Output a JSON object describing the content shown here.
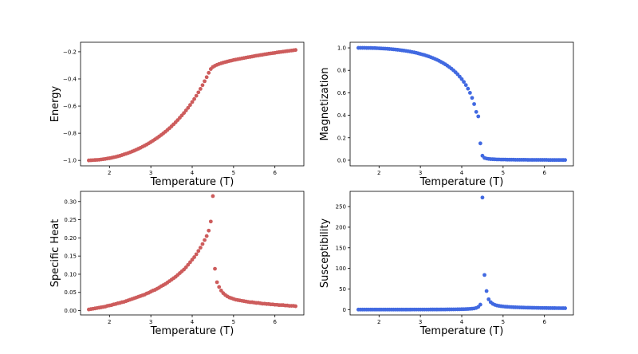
{
  "colors": {
    "red": "#cd5c5c",
    "blue": "#4169e1"
  },
  "chart_data": [
    {
      "id": "energy",
      "type": "scatter",
      "xlabel": "Temperature (T)",
      "ylabel": "Energy",
      "color": "#cd5c5c",
      "xlim": [
        1.3,
        6.7
      ],
      "ylim": [
        -1.04,
        -0.13
      ],
      "xticks": [
        2,
        3,
        4,
        5,
        6
      ],
      "xtick_labels": [
        "2",
        "3",
        "4",
        "5",
        "6"
      ],
      "yticks": [
        -1.0,
        -0.8,
        -0.6,
        -0.4,
        -0.2
      ],
      "ytick_labels": [
        "−1.0",
        "−0.8",
        "−0.6",
        "−0.4",
        "−0.2"
      ],
      "x": [
        1.5,
        1.55,
        1.6,
        1.65,
        1.7,
        1.75,
        1.8,
        1.85,
        1.9,
        1.95,
        2.0,
        2.05,
        2.1,
        2.15,
        2.2,
        2.25,
        2.3,
        2.35,
        2.4,
        2.45,
        2.5,
        2.55,
        2.6,
        2.65,
        2.7,
        2.75,
        2.8,
        2.85,
        2.9,
        2.95,
        3.0,
        3.05,
        3.1,
        3.15,
        3.2,
        3.25,
        3.3,
        3.35,
        3.4,
        3.45,
        3.5,
        3.55,
        3.6,
        3.65,
        3.7,
        3.75,
        3.8,
        3.85,
        3.9,
        3.95,
        4.0,
        4.05,
        4.1,
        4.15,
        4.2,
        4.25,
        4.3,
        4.35,
        4.4,
        4.45,
        4.5,
        4.55,
        4.6,
        4.65,
        4.7,
        4.75,
        4.8,
        4.85,
        4.9,
        4.95,
        5.0,
        5.05,
        5.1,
        5.15,
        5.2,
        5.25,
        5.3,
        5.35,
        5.4,
        5.45,
        5.5,
        5.55,
        5.6,
        5.65,
        5.7,
        5.75,
        5.8,
        5.85,
        5.9,
        5.95,
        6.0,
        6.05,
        6.1,
        6.15,
        6.2,
        6.25,
        6.3,
        6.35,
        6.4,
        6.45,
        6.5
      ],
      "y": [
        -1.0,
        -0.999,
        -0.998,
        -0.997,
        -0.996,
        -0.995,
        -0.993,
        -0.991,
        -0.989,
        -0.986,
        -0.984,
        -0.981,
        -0.977,
        -0.974,
        -0.97,
        -0.966,
        -0.961,
        -0.956,
        -0.951,
        -0.946,
        -0.94,
        -0.934,
        -0.928,
        -0.921,
        -0.914,
        -0.907,
        -0.899,
        -0.891,
        -0.883,
        -0.874,
        -0.865,
        -0.855,
        -0.845,
        -0.835,
        -0.824,
        -0.813,
        -0.801,
        -0.789,
        -0.776,
        -0.763,
        -0.749,
        -0.734,
        -0.719,
        -0.703,
        -0.686,
        -0.669,
        -0.651,
        -0.632,
        -0.613,
        -0.592,
        -0.57,
        -0.548,
        -0.524,
        -0.499,
        -0.473,
        -0.446,
        -0.417,
        -0.387,
        -0.355,
        -0.327,
        -0.312,
        -0.303,
        -0.296,
        -0.29,
        -0.285,
        -0.28,
        -0.276,
        -0.272,
        -0.268,
        -0.265,
        -0.261,
        -0.258,
        -0.255,
        -0.252,
        -0.249,
        -0.246,
        -0.243,
        -0.24,
        -0.238,
        -0.235,
        -0.232,
        -0.229,
        -0.227,
        -0.224,
        -0.222,
        -0.219,
        -0.217,
        -0.214,
        -0.212,
        -0.21,
        -0.208,
        -0.205,
        -0.203,
        -0.201,
        -0.199,
        -0.197,
        -0.195,
        -0.193,
        -0.191,
        -0.189,
        -0.187
      ]
    },
    {
      "id": "magnetization",
      "type": "scatter",
      "xlabel": "Temperature (T)",
      "ylabel": "Magnetization",
      "color": "#4169e1",
      "xlim": [
        1.3,
        6.7
      ],
      "ylim": [
        -0.05,
        1.05
      ],
      "xticks": [
        2,
        3,
        4,
        5,
        6
      ],
      "xtick_labels": [
        "2",
        "3",
        "4",
        "5",
        "6"
      ],
      "yticks": [
        0.0,
        0.2,
        0.4,
        0.6,
        0.8,
        1.0
      ],
      "ytick_labels": [
        "0.0",
        "0.2",
        "0.4",
        "0.6",
        "0.8",
        "1.0"
      ],
      "x": [
        1.5,
        1.55,
        1.6,
        1.65,
        1.7,
        1.75,
        1.8,
        1.85,
        1.9,
        1.95,
        2.0,
        2.05,
        2.1,
        2.15,
        2.2,
        2.25,
        2.3,
        2.35,
        2.4,
        2.45,
        2.5,
        2.55,
        2.6,
        2.65,
        2.7,
        2.75,
        2.8,
        2.85,
        2.9,
        2.95,
        3.0,
        3.05,
        3.1,
        3.15,
        3.2,
        3.25,
        3.3,
        3.35,
        3.4,
        3.45,
        3.5,
        3.55,
        3.6,
        3.65,
        3.7,
        3.75,
        3.8,
        3.85,
        3.9,
        3.95,
        4.0,
        4.05,
        4.1,
        4.15,
        4.2,
        4.25,
        4.3,
        4.35,
        4.4,
        4.45,
        4.5,
        4.55,
        4.6,
        4.65,
        4.7,
        4.75,
        4.8,
        4.85,
        4.9,
        4.95,
        5.0,
        5.05,
        5.1,
        5.15,
        5.2,
        5.25,
        5.3,
        5.35,
        5.4,
        5.45,
        5.5,
        5.55,
        5.6,
        5.65,
        5.7,
        5.75,
        5.8,
        5.85,
        5.9,
        5.95,
        6.0,
        6.05,
        6.1,
        6.15,
        6.2,
        6.25,
        6.3,
        6.35,
        6.4,
        6.45,
        6.5
      ],
      "y": [
        1.0,
        1.0,
        1.0,
        1.0,
        0.999,
        0.999,
        0.999,
        0.998,
        0.998,
        0.997,
        0.996,
        0.995,
        0.994,
        0.993,
        0.992,
        0.99,
        0.989,
        0.987,
        0.985,
        0.983,
        0.981,
        0.978,
        0.976,
        0.973,
        0.97,
        0.967,
        0.963,
        0.96,
        0.956,
        0.951,
        0.946,
        0.941,
        0.936,
        0.93,
        0.924,
        0.917,
        0.91,
        0.902,
        0.894,
        0.885,
        0.875,
        0.865,
        0.854,
        0.842,
        0.829,
        0.815,
        0.8,
        0.783,
        0.765,
        0.744,
        0.722,
        0.697,
        0.669,
        0.637,
        0.6,
        0.555,
        0.5,
        0.43,
        0.39,
        0.15,
        0.04,
        0.02,
        0.015,
        0.012,
        0.01,
        0.009,
        0.008,
        0.007,
        0.007,
        0.006,
        0.006,
        0.006,
        0.005,
        0.005,
        0.005,
        0.005,
        0.004,
        0.004,
        0.004,
        0.004,
        0.004,
        0.004,
        0.003,
        0.003,
        0.003,
        0.003,
        0.003,
        0.003,
        0.003,
        0.003,
        0.003,
        0.003,
        0.002,
        0.002,
        0.002,
        0.002,
        0.002,
        0.002,
        0.002,
        0.002,
        0.002
      ]
    },
    {
      "id": "specific-heat",
      "type": "scatter",
      "xlabel": "Temperature (T)",
      "ylabel": "Specific Heat",
      "color": "#cd5c5c",
      "xlim": [
        1.3,
        6.7
      ],
      "ylim": [
        -0.012,
        0.328
      ],
      "xticks": [
        2,
        3,
        4,
        5,
        6
      ],
      "xtick_labels": [
        "2",
        "3",
        "4",
        "5",
        "6"
      ],
      "yticks": [
        0.0,
        0.05,
        0.1,
        0.15,
        0.2,
        0.25,
        0.3
      ],
      "ytick_labels": [
        "0.00",
        "0.05",
        "0.10",
        "0.15",
        "0.20",
        "0.25",
        "0.30"
      ],
      "x": [
        1.5,
        1.55,
        1.6,
        1.65,
        1.7,
        1.75,
        1.8,
        1.85,
        1.9,
        1.95,
        2.0,
        2.05,
        2.1,
        2.15,
        2.2,
        2.25,
        2.3,
        2.35,
        2.4,
        2.45,
        2.5,
        2.55,
        2.6,
        2.65,
        2.7,
        2.75,
        2.8,
        2.85,
        2.9,
        2.95,
        3.0,
        3.05,
        3.1,
        3.15,
        3.2,
        3.25,
        3.3,
        3.35,
        3.4,
        3.45,
        3.5,
        3.55,
        3.6,
        3.65,
        3.7,
        3.75,
        3.8,
        3.85,
        3.9,
        3.95,
        4.0,
        4.05,
        4.1,
        4.15,
        4.2,
        4.25,
        4.3,
        4.35,
        4.4,
        4.45,
        4.5,
        4.55,
        4.6,
        4.65,
        4.7,
        4.75,
        4.8,
        4.85,
        4.9,
        4.95,
        5.0,
        5.05,
        5.1,
        5.15,
        5.2,
        5.25,
        5.3,
        5.35,
        5.4,
        5.45,
        5.5,
        5.55,
        5.6,
        5.65,
        5.7,
        5.75,
        5.8,
        5.85,
        5.9,
        5.95,
        6.0,
        6.05,
        6.1,
        6.15,
        6.2,
        6.25,
        6.3,
        6.35,
        6.4,
        6.45,
        6.5
      ],
      "y": [
        0.003,
        0.004,
        0.005,
        0.006,
        0.007,
        0.008,
        0.009,
        0.01,
        0.011,
        0.013,
        0.014,
        0.015,
        0.017,
        0.018,
        0.02,
        0.021,
        0.023,
        0.024,
        0.026,
        0.028,
        0.03,
        0.032,
        0.034,
        0.036,
        0.038,
        0.04,
        0.042,
        0.044,
        0.047,
        0.049,
        0.052,
        0.055,
        0.057,
        0.06,
        0.063,
        0.067,
        0.07,
        0.073,
        0.077,
        0.081,
        0.085,
        0.089,
        0.093,
        0.098,
        0.103,
        0.108,
        0.113,
        0.119,
        0.126,
        0.133,
        0.14,
        0.147,
        0.155,
        0.164,
        0.173,
        0.183,
        0.194,
        0.205,
        0.22,
        0.245,
        0.315,
        0.115,
        0.078,
        0.065,
        0.055,
        0.048,
        0.043,
        0.039,
        0.036,
        0.034,
        0.032,
        0.03,
        0.029,
        0.028,
        0.027,
        0.026,
        0.025,
        0.024,
        0.023,
        0.023,
        0.022,
        0.021,
        0.021,
        0.02,
        0.019,
        0.019,
        0.018,
        0.018,
        0.017,
        0.017,
        0.016,
        0.016,
        0.015,
        0.015,
        0.015,
        0.014,
        0.014,
        0.013,
        0.013,
        0.013,
        0.012
      ]
    },
    {
      "id": "susceptibility",
      "type": "scatter",
      "xlabel": "Temperature (T)",
      "ylabel": "Susceptibility",
      "color": "#4169e1",
      "xlim": [
        1.3,
        6.7
      ],
      "ylim": [
        -13,
        287
      ],
      "xticks": [
        2,
        3,
        4,
        5,
        6
      ],
      "xtick_labels": [
        "2",
        "3",
        "4",
        "5",
        "6"
      ],
      "yticks": [
        0,
        50,
        100,
        150,
        200,
        250
      ],
      "ytick_labels": [
        "0",
        "50",
        "100",
        "150",
        "200",
        "250"
      ],
      "x": [
        1.5,
        1.55,
        1.6,
        1.65,
        1.7,
        1.75,
        1.8,
        1.85,
        1.9,
        1.95,
        2.0,
        2.05,
        2.1,
        2.15,
        2.2,
        2.25,
        2.3,
        2.35,
        2.4,
        2.45,
        2.5,
        2.55,
        2.6,
        2.65,
        2.7,
        2.75,
        2.8,
        2.85,
        2.9,
        2.95,
        3.0,
        3.05,
        3.1,
        3.15,
        3.2,
        3.25,
        3.3,
        3.35,
        3.4,
        3.45,
        3.5,
        3.55,
        3.6,
        3.65,
        3.7,
        3.75,
        3.8,
        3.85,
        3.9,
        3.95,
        4.0,
        4.05,
        4.1,
        4.15,
        4.2,
        4.25,
        4.3,
        4.35,
        4.4,
        4.45,
        4.5,
        4.55,
        4.6,
        4.65,
        4.7,
        4.75,
        4.8,
        4.85,
        4.9,
        4.95,
        5.0,
        5.05,
        5.1,
        5.15,
        5.2,
        5.25,
        5.3,
        5.35,
        5.4,
        5.45,
        5.5,
        5.55,
        5.6,
        5.65,
        5.7,
        5.75,
        5.8,
        5.85,
        5.9,
        5.95,
        6.0,
        6.05,
        6.1,
        6.15,
        6.2,
        6.25,
        6.3,
        6.35,
        6.4,
        6.45,
        6.5
      ],
      "y": [
        0.0,
        0.0,
        0.0,
        0.0,
        0.0,
        0.0,
        0.0,
        0.0,
        0.0,
        0.0,
        0.0,
        0.0,
        0.0,
        0.0,
        0.0,
        0.0,
        0.0,
        0.0,
        0.0,
        0.0,
        0.0,
        0.0,
        0.0,
        0.0,
        0.0,
        0.0,
        0.1,
        0.1,
        0.1,
        0.1,
        0.1,
        0.1,
        0.1,
        0.1,
        0.1,
        0.2,
        0.2,
        0.2,
        0.2,
        0.2,
        0.3,
        0.3,
        0.3,
        0.4,
        0.4,
        0.5,
        0.5,
        0.6,
        0.7,
        0.8,
        0.9,
        1.0,
        1.2,
        1.5,
        1.8,
        2.2,
        2.8,
        4.0,
        6.5,
        12.0,
        272.0,
        84.0,
        45.0,
        25.0,
        18.0,
        14.0,
        11.5,
        10.0,
        9.0,
        8.2,
        7.6,
        7.1,
        6.7,
        6.4,
        6.1,
        5.8,
        5.6,
        5.4,
        5.2,
        5.0,
        4.9,
        4.7,
        4.6,
        4.5,
        4.4,
        4.3,
        4.2,
        4.1,
        4.0,
        3.9,
        3.9,
        3.8,
        3.7,
        3.7,
        3.6,
        3.6,
        3.5,
        3.5,
        3.4,
        3.4,
        3.3
      ]
    }
  ]
}
